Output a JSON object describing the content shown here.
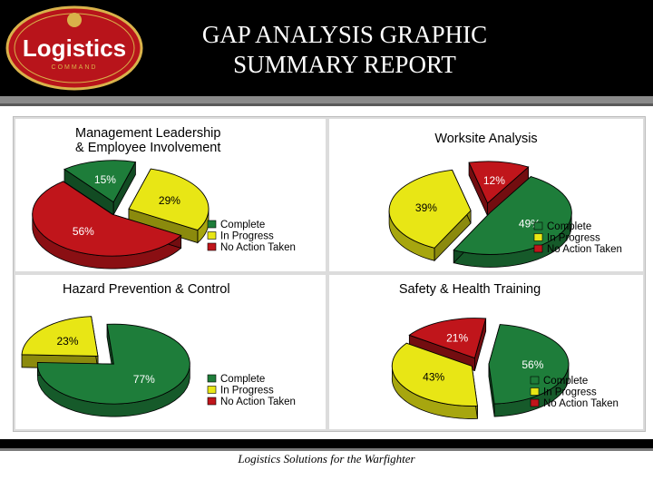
{
  "header": {
    "title_line1": "GAP ANALYSIS GRAPHIC",
    "title_line2": "SUMMARY REPORT",
    "logo_text": "Logistics",
    "logo_subtext": "COMMAND"
  },
  "footer": {
    "text": "Logistics Solutions for the Warfighter"
  },
  "colors": {
    "complete": "#1e7d3a",
    "in_progress": "#e8e615",
    "no_action": "#c0151b"
  },
  "chart_data": [
    {
      "type": "pie",
      "title_lines": [
        "Management Leadership",
        "& Employee Involvement"
      ],
      "legend": [
        "Complete",
        "In Progress",
        "No Action Taken"
      ],
      "slices": [
        {
          "label": "Complete",
          "value": 15
        },
        {
          "label": "In Progress",
          "value": 29
        },
        {
          "label": "No Action Taken",
          "value": 56
        }
      ]
    },
    {
      "type": "pie",
      "title_lines": [
        "Worksite Analysis"
      ],
      "legend": [
        "Complete",
        "In Progress",
        "No Action Taken"
      ],
      "slices": [
        {
          "label": "Complete",
          "value": 49
        },
        {
          "label": "In Progress",
          "value": 39
        },
        {
          "label": "No Action Taken",
          "value": 12
        }
      ]
    },
    {
      "type": "pie",
      "title_lines": [
        "Hazard Prevention & Control"
      ],
      "legend": [
        "Complete",
        "In Progress",
        "No Action Taken"
      ],
      "slices": [
        {
          "label": "Complete",
          "value": 77
        },
        {
          "label": "In Progress",
          "value": 23
        },
        {
          "label": "No Action Taken",
          "value": 0
        }
      ]
    },
    {
      "type": "pie",
      "title_lines": [
        "Safety & Health Training"
      ],
      "legend": [
        "Complete",
        "In Progress",
        "No Action Taken"
      ],
      "slices": [
        {
          "label": "Complete",
          "value": 56
        },
        {
          "label": "In Progress",
          "value": 43
        },
        {
          "label": "No Action Taken",
          "value": 21
        }
      ]
    }
  ]
}
